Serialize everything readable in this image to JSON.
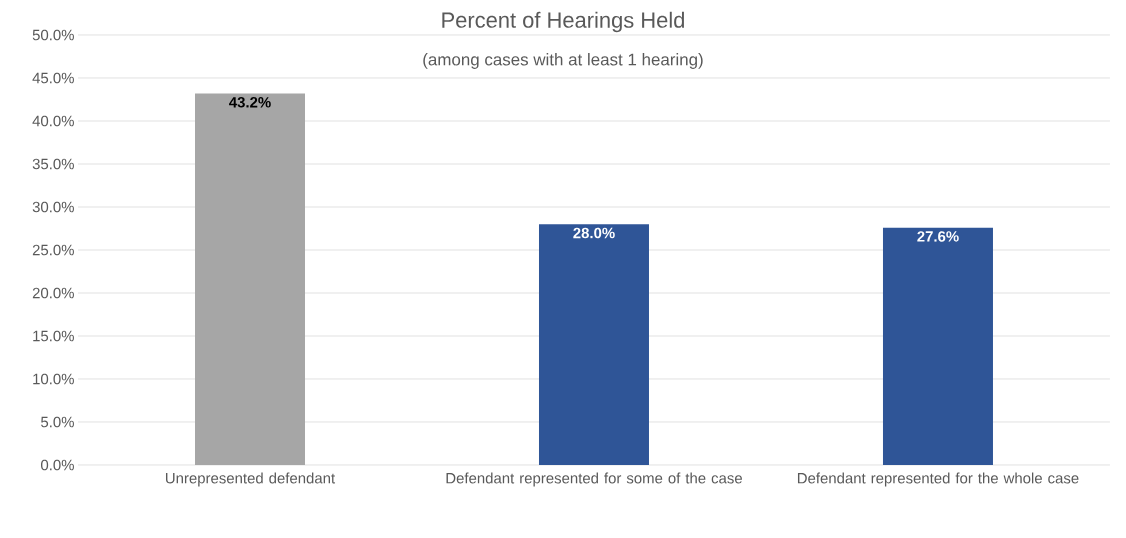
{
  "chart_data": {
    "type": "bar",
    "title": "Percent of Hearings Held",
    "subtitle": "(among cases with at least 1 hearing)",
    "categories": [
      "Unrepresented defendant",
      "Defendant represented for some of the case",
      "Defendant represented for the whole case"
    ],
    "values": [
      43.2,
      28.0,
      27.6
    ],
    "colors": [
      "#a6a6a6",
      "#2f5597",
      "#2f5597"
    ],
    "value_labels": [
      "43.2%",
      "28.0%",
      "27.6%"
    ],
    "ylim": [
      0,
      50
    ],
    "yticks": [
      {
        "value": 0,
        "label": "0.0%"
      },
      {
        "value": 5,
        "label": "5.0%"
      },
      {
        "value": 10,
        "label": "10.0%"
      },
      {
        "value": 15,
        "label": "15.0%"
      },
      {
        "value": 20,
        "label": "20.0%"
      },
      {
        "value": 25,
        "label": "25.0%"
      },
      {
        "value": 30,
        "label": "30.0%"
      },
      {
        "value": 35,
        "label": "35.0%"
      },
      {
        "value": 40,
        "label": "40.0%"
      },
      {
        "value": 45,
        "label": "45.0%"
      },
      {
        "value": 50,
        "label": "50.0%"
      }
    ],
    "grid": "y"
  }
}
